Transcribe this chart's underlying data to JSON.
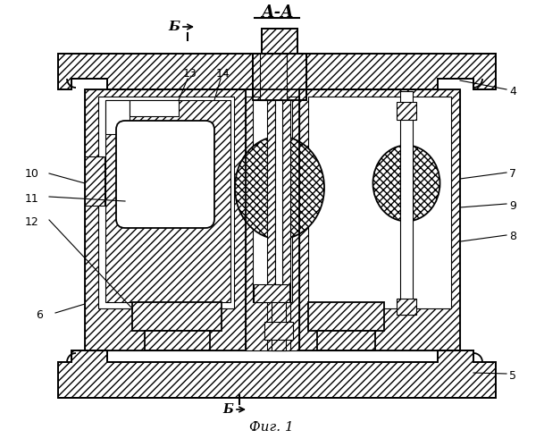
{
  "title": "А-А",
  "fig_label": "Фиг. 1",
  "section_label": "Б",
  "bg_color": "#ffffff",
  "line_color": "#000000",
  "figsize": [
    6.09,
    5.0
  ],
  "dpi": 100
}
